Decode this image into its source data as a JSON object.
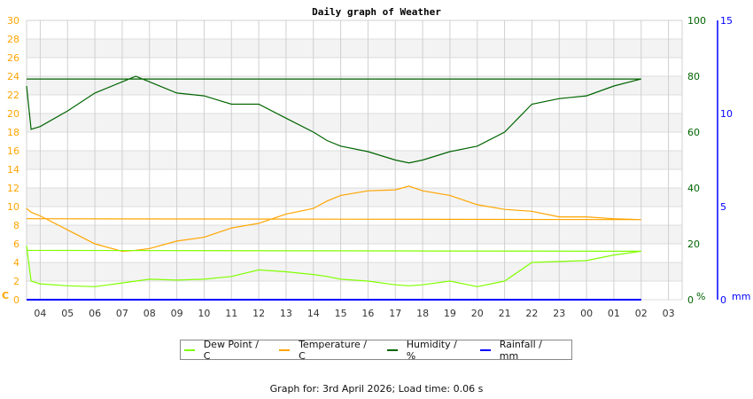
{
  "chart_data": {
    "type": "line",
    "title": "Daily graph of Weather",
    "x_ticks": [
      "04",
      "05",
      "06",
      "07",
      "08",
      "09",
      "10",
      "11",
      "12",
      "13",
      "14",
      "15",
      "16",
      "17",
      "18",
      "19",
      "20",
      "21",
      "22",
      "23",
      "00",
      "01",
      "02",
      "03"
    ],
    "x_range": [
      "03:30",
      "03:30 (+1 day)"
    ],
    "y_left": {
      "label": "C",
      "range": [
        0,
        30
      ],
      "ticks": [
        "0",
        "2",
        "4",
        "6",
        "8",
        "10",
        "12",
        "14",
        "16",
        "18",
        "20",
        "22",
        "24",
        "26",
        "28",
        "30"
      ],
      "color": "#ffa500"
    },
    "y_right_humidity": {
      "label": "%",
      "range": [
        0,
        100
      ],
      "ticks": [
        "0",
        "20",
        "40",
        "60",
        "80",
        "100"
      ],
      "color": "#006400"
    },
    "y_right_rain": {
      "label": "mm",
      "range": [
        0,
        15
      ],
      "ticks": [
        "0",
        "5",
        "10",
        "15"
      ],
      "color": "#0000ff"
    },
    "grid": true,
    "legend_position": "bottom",
    "x": [
      "03:30",
      "03:40",
      "04:00",
      "05:00",
      "06:00",
      "07:00",
      "07:30",
      "08:00",
      "09:00",
      "10:00",
      "11:00",
      "12:00",
      "13:00",
      "14:00",
      "14:30",
      "15:00",
      "16:00",
      "17:00",
      "17:30",
      "18:00",
      "19:00",
      "20:00",
      "21:00",
      "22:00",
      "23:00",
      "00:00",
      "01:00",
      "02:00",
      "03:30"
    ],
    "series": [
      {
        "name": "Dew Point / C",
        "axis": "left",
        "color": "#80ff00",
        "values": [
          5.8,
          2.0,
          1.7,
          1.5,
          1.4,
          1.8,
          2.0,
          2.2,
          2.1,
          2.2,
          2.5,
          3.2,
          3.0,
          2.7,
          2.5,
          2.2,
          2.0,
          1.6,
          1.5,
          1.6,
          2.0,
          1.4,
          2.0,
          4.0,
          4.1,
          4.2,
          4.8,
          5.2,
          5.3
        ]
      },
      {
        "name": "Temperature / C",
        "axis": "left",
        "color": "#ffa500",
        "values": [
          9.8,
          9.4,
          9.0,
          7.5,
          6.0,
          5.2,
          5.3,
          5.5,
          6.3,
          6.7,
          7.7,
          8.2,
          9.2,
          9.8,
          10.6,
          11.2,
          11.7,
          11.8,
          12.2,
          11.7,
          11.2,
          10.2,
          9.7,
          9.5,
          8.9,
          8.9,
          8.7,
          8.6,
          8.7
        ]
      },
      {
        "name": "Humidity / %",
        "axis": "humidity",
        "color": "#006400",
        "values": [
          76.5,
          61,
          62,
          67.6,
          74,
          78,
          80,
          78,
          74,
          73,
          70,
          70,
          65,
          60,
          57,
          55,
          53,
          50,
          49,
          50,
          53,
          55,
          60,
          70,
          72,
          73,
          76.5,
          79,
          79
        ]
      },
      {
        "name": "Rainfall / mm",
        "axis": "rain",
        "color": "#0000ff",
        "values": [
          0,
          0,
          0,
          0,
          0,
          0,
          0,
          0,
          0,
          0,
          0,
          0,
          0,
          0,
          0,
          0,
          0,
          0,
          0,
          0,
          0,
          0,
          0,
          0,
          0,
          0,
          0,
          0,
          0
        ]
      }
    ]
  },
  "footer": "Graph for: 3rd April 2026; Load time: 0.06 s"
}
